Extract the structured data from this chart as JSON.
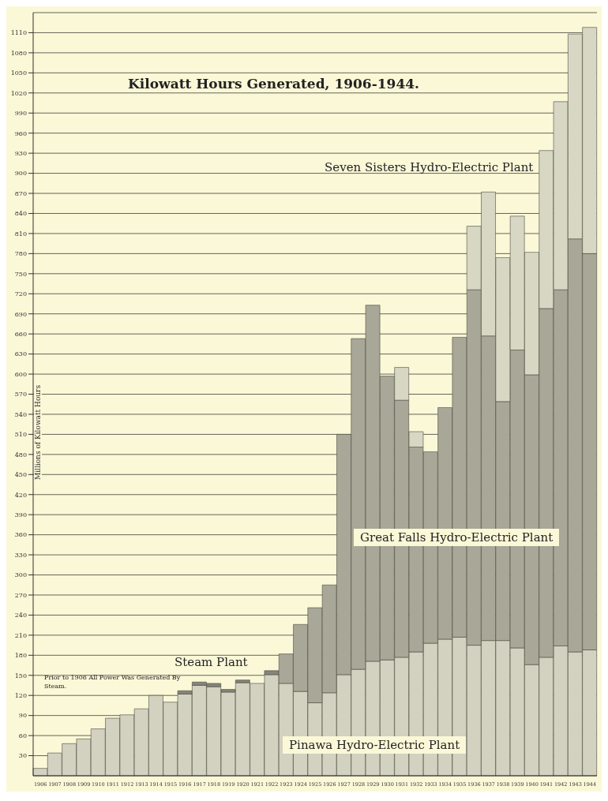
{
  "chart_data": {
    "type": "bar",
    "title": "Kilowatt Hours Generated, 1906-1944.",
    "ylabel": "Millions of Kilowatt Hours",
    "categories": [
      "1906",
      "1907",
      "1908",
      "1909",
      "1910",
      "1911",
      "1912",
      "1913",
      "1914",
      "1915",
      "1916",
      "1917",
      "1918",
      "1919",
      "1920",
      "1921",
      "1922",
      "1923",
      "1924",
      "1925",
      "1926",
      "1927",
      "1928",
      "1929",
      "1930",
      "1931",
      "1932",
      "1933",
      "1934",
      "1935",
      "1936",
      "1937",
      "1938",
      "1939",
      "1940",
      "1941",
      "1942",
      "1943",
      "1944"
    ],
    "stacked": true,
    "series": [
      {
        "name": "Pinawa Hydro-Electric Plant",
        "color": "#d3d1c0",
        "values": [
          11,
          34,
          48,
          55,
          70,
          86,
          91,
          100,
          120,
          110,
          122,
          135,
          133,
          125,
          139,
          138,
          151,
          138,
          126,
          109,
          124,
          151,
          159,
          171,
          173,
          177,
          185,
          198,
          204,
          207,
          195,
          202,
          202,
          191,
          166,
          177,
          194,
          185,
          188
        ]
      },
      {
        "name": "Steam Plant",
        "color": "#85847a",
        "values": [
          0,
          0,
          0,
          0,
          0,
          0,
          0,
          0,
          0,
          0,
          5,
          5,
          5,
          4,
          4,
          0,
          6,
          0,
          0,
          0,
          0,
          0,
          0,
          0,
          0,
          0,
          0,
          0,
          0,
          0,
          0,
          0,
          0,
          0,
          0,
          0,
          0,
          0,
          0
        ]
      },
      {
        "name": "Great Falls Hydro-Electric Plant",
        "color": "#a9a797",
        "values": [
          0,
          0,
          0,
          0,
          0,
          0,
          0,
          0,
          0,
          0,
          0,
          0,
          0,
          0,
          0,
          0,
          0,
          44,
          100,
          142,
          161,
          359,
          494,
          532,
          424,
          384,
          306,
          286,
          346,
          448,
          531,
          455,
          357,
          445,
          433,
          521,
          532,
          617,
          592
        ]
      },
      {
        "name": "Seven Sisters Hydro-Electric Plant",
        "color": "#d8d7c4",
        "values": [
          0,
          0,
          0,
          0,
          0,
          0,
          0,
          0,
          0,
          0,
          0,
          0,
          0,
          0,
          0,
          0,
          0,
          0,
          0,
          0,
          0,
          0,
          0,
          0,
          0,
          49,
          23,
          0,
          0,
          0,
          95,
          215,
          215,
          200,
          183,
          236,
          281,
          306,
          338
        ]
      }
    ],
    "ylim": [
      0,
      1140
    ],
    "yticks": [
      30,
      60,
      90,
      120,
      150,
      180,
      210,
      240,
      270,
      300,
      330,
      360,
      390,
      420,
      450,
      480,
      510,
      540,
      570,
      600,
      630,
      660,
      690,
      720,
      750,
      780,
      810,
      840,
      870,
      900,
      930,
      960,
      990,
      1020,
      1050,
      1080,
      1110
    ],
    "grid": "y",
    "legend": false,
    "annotations": [
      "Prior to 1906 All Power Was Generated By Steam."
    ]
  }
}
